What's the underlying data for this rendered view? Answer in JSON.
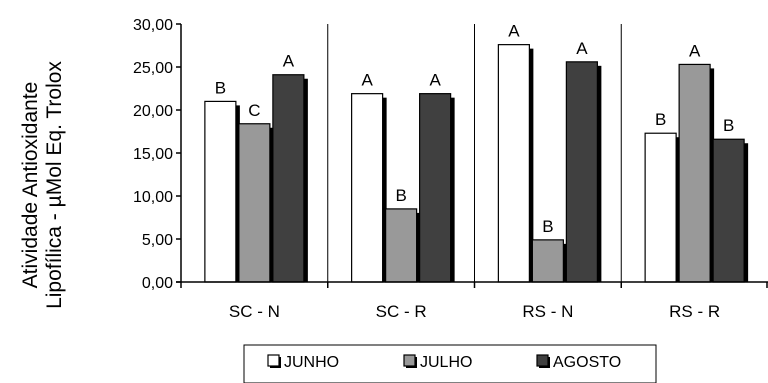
{
  "chart_data": {
    "type": "bar",
    "title": "",
    "xlabel": "",
    "ylabel_lines": [
      "Atividade Antioxidante",
      "Lipofílica - µMol Eq. Trolox"
    ],
    "categories": [
      "SC - N",
      "SC - R",
      "RS - N",
      "RS - R"
    ],
    "ylim": [
      0,
      30
    ],
    "y_ticks": [
      "0,00",
      "5,00",
      "10,00",
      "15,00",
      "20,00",
      "25,00",
      "30,00"
    ],
    "grid": "vertical separators between categories",
    "legend_position": "bottom",
    "series": [
      {
        "name": "JUNHO",
        "color": "#ffffff",
        "values": [
          21.0,
          21.9,
          27.6,
          17.3
        ],
        "letters": [
          "B",
          "A",
          "A",
          "B"
        ]
      },
      {
        "name": "JULHO",
        "color": "#999999",
        "values": [
          18.4,
          8.5,
          4.9,
          25.3
        ],
        "letters": [
          "C",
          "B",
          "B",
          "A"
        ]
      },
      {
        "name": "AGOSTO",
        "color": "#404040",
        "values": [
          24.1,
          21.9,
          25.6,
          16.6
        ],
        "letters": [
          "A",
          "A",
          "A",
          "B"
        ]
      }
    ]
  }
}
